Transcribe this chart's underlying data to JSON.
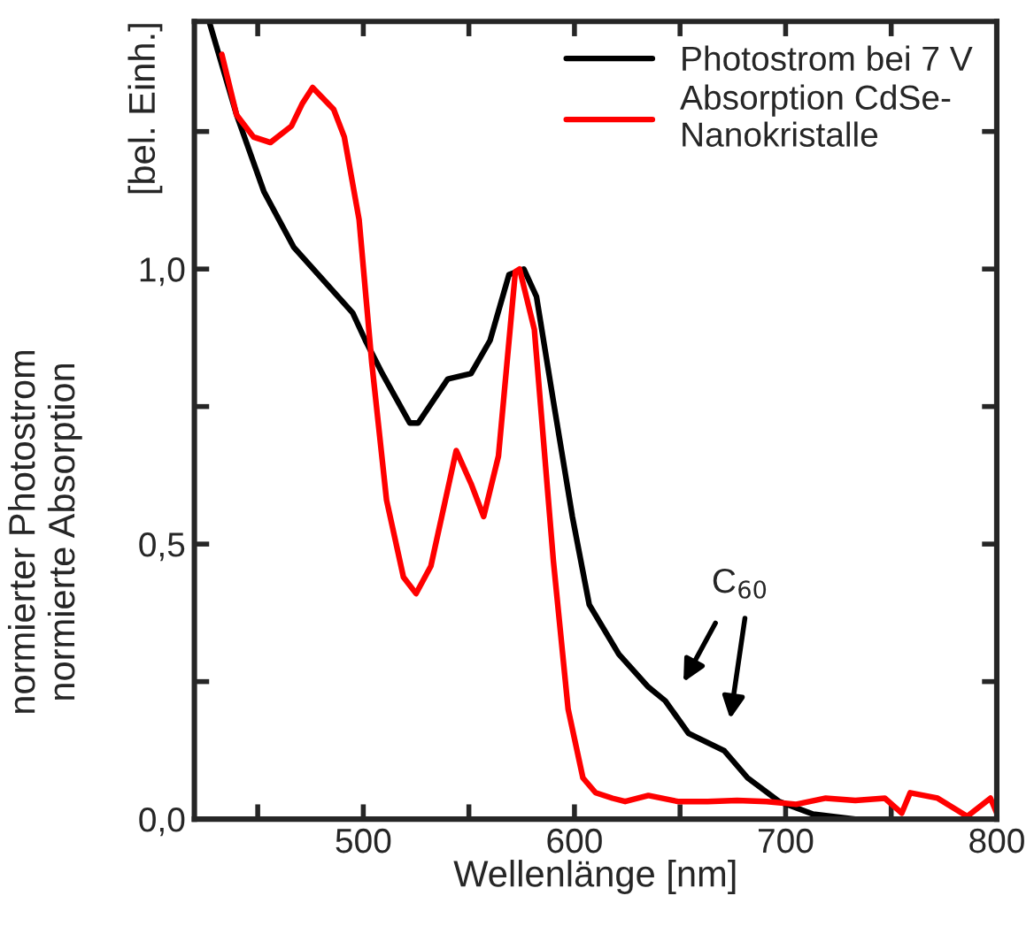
{
  "chart_data": {
    "type": "line",
    "xlabel": "Wellenlänge [nm]",
    "ylabel": "normierter Photostrom\nnormierte Absorption",
    "xlim": [
      420,
      800
    ],
    "xticks": [
      {
        "value": 450,
        "label": null
      },
      500,
      {
        "value": 550,
        "label": null
      },
      600,
      {
        "value": 650,
        "label": null
      },
      700,
      {
        "value": 750,
        "label": null
      },
      800
    ],
    "ylim": [
      0,
      1.45
    ],
    "yticks": [
      {
        "value": 0,
        "label": "0,0"
      },
      {
        "value": 0.25,
        "label": null
      },
      {
        "value": 0.5,
        "label": "0,5"
      },
      {
        "value": 0.75,
        "label": null
      },
      {
        "value": 1.0,
        "label": "1,0"
      },
      {
        "value": 1.25,
        "label": null
      }
    ],
    "legend": "top right",
    "grid": false,
    "marker": "none",
    "line_style": "solid",
    "annotations": [
      "C$_{60}$",
      "[bel. Einh.]"
    ],
    "series": [
      {
        "name": "Photostrom bei 7 V",
        "color": "#000000",
        "x": [
          427,
          440,
          453,
          467,
          481,
          495,
          501,
          509,
          522,
          526,
          540,
          551,
          560,
          569,
          576,
          582,
          590,
          599,
          607,
          621,
          635,
          643,
          654,
          671,
          682,
          697,
          713,
          733,
          800
        ],
        "values": [
          1.45,
          1.28,
          1.14,
          1.04,
          0.98,
          0.92,
          0.87,
          0.81,
          0.72,
          0.72,
          0.8,
          0.81,
          0.87,
          0.99,
          1.0,
          0.95,
          0.76,
          0.55,
          0.39,
          0.3,
          0.24,
          0.215,
          0.156,
          0.124,
          0.075,
          0.032,
          0.009,
          0.0,
          0.0
        ]
      },
      {
        "name": "Absorption CdSe-\nNanokristalle",
        "color": "#ff0000",
        "x": [
          433,
          440,
          448,
          456,
          466,
          471,
          476,
          486,
          491,
          498,
          504,
          511,
          519,
          525,
          532,
          544,
          551,
          557,
          564,
          572,
          574,
          581,
          590,
          597,
          604,
          610,
          618,
          624,
          635,
          649,
          663,
          677,
          691,
          705,
          719,
          733,
          747,
          755,
          759,
          772,
          786,
          797,
          800
        ],
        "values": [
          1.39,
          1.28,
          1.24,
          1.23,
          1.26,
          1.3,
          1.33,
          1.29,
          1.24,
          1.09,
          0.83,
          0.58,
          0.44,
          0.41,
          0.46,
          0.67,
          0.61,
          0.55,
          0.66,
          0.995,
          1.0,
          0.89,
          0.47,
          0.2,
          0.075,
          0.048,
          0.038,
          0.032,
          0.043,
          0.032,
          0.032,
          0.034,
          0.032,
          0.027,
          0.038,
          0.034,
          0.038,
          0.011,
          0.048,
          0.038,
          0.005,
          0.038,
          0.011
        ]
      }
    ]
  }
}
